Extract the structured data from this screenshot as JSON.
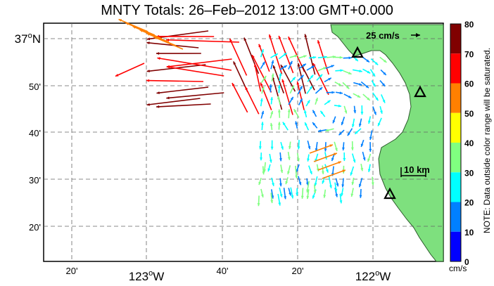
{
  "title": "MNTY Totals: 26–Feb–2012 13:00 GMT+0.000",
  "map": {
    "lat_ticks": [
      {
        "label": "37",
        "deg": "o",
        "hem": "N",
        "main": true
      },
      {
        "label": "50'",
        "main": false
      },
      {
        "label": "40'",
        "main": false
      },
      {
        "label": "30'",
        "main": false
      },
      {
        "label": "20'",
        "main": false
      }
    ],
    "lon_ticks": [
      {
        "label": "20'",
        "main": false
      },
      {
        "label": "123",
        "deg": "o",
        "hem": "W",
        "main": true
      },
      {
        "label": "40'",
        "main": false
      },
      {
        "label": "20'",
        "main": false
      },
      {
        "label": "122",
        "deg": "o",
        "hem": "W",
        "main": true
      }
    ],
    "scale_vector_label": "25 cm/s",
    "scale_bar_label": "10 km",
    "land_color": "#7ee07e",
    "station_icon": "triangle-station-icon"
  },
  "colorbar": {
    "ticks": [
      "80",
      "70",
      "60",
      "50",
      "40",
      "30",
      "20",
      "10",
      "0"
    ],
    "colors": [
      "#800000",
      "#ff0000",
      "#ff8000",
      "#ffff00",
      "#80ff80",
      "#00ffff",
      "#0080ff",
      "#0000ff"
    ],
    "unit": "cm/s",
    "note": "NOTE: Data outside color range will be saturated."
  }
}
